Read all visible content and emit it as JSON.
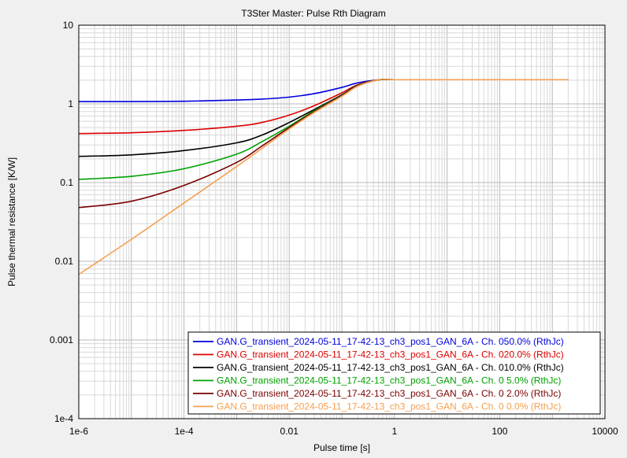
{
  "chart_data": {
    "type": "line",
    "title": "T3Ster Master: Pulse Rth Diagram",
    "xlabel": "Pulse time [s]",
    "ylabel": "Pulse thermal resistance [K/W]",
    "xscale": "log",
    "yscale": "log",
    "xlim": [
      1e-06,
      10000
    ],
    "ylim": [
      0.0001,
      10
    ],
    "x_tick_labels": [
      "1e-6",
      "1e-4",
      "0.01",
      "1",
      "100",
      "10000"
    ],
    "x_tick_values": [
      1e-06,
      0.0001,
      0.01,
      1,
      100,
      10000
    ],
    "y_tick_labels": [
      "1e-4",
      "0.001",
      "0.01",
      "0.1",
      "1",
      "10"
    ],
    "y_tick_values": [
      0.0001,
      0.001,
      0.01,
      0.1,
      1,
      10
    ],
    "grid": true,
    "legend_position": "bottom-right",
    "series": [
      {
        "name": "GAN.G_transient_2024-05-11_17-42-13_ch3_pos1_GAN_6A - Ch. 050.0% (RthJc)",
        "color": "#0000dd",
        "x": [
          1e-06,
          1e-05,
          0.0001,
          0.001,
          0.003,
          0.01,
          0.03,
          0.1,
          0.2,
          0.5,
          1,
          10,
          100,
          1000,
          2000
        ],
        "y": [
          1.07,
          1.07,
          1.08,
          1.12,
          1.15,
          1.22,
          1.35,
          1.62,
          1.85,
          2.02,
          2.03,
          2.03,
          2.03,
          2.03,
          2.03
        ]
      },
      {
        "name": "GAN.G_transient_2024-05-11_17-42-13_ch3_pos1_GAN_6A - Ch. 020.0% (RthJc)",
        "color": "#dd0000",
        "x": [
          1e-06,
          1e-05,
          0.0001,
          0.001,
          0.003,
          0.01,
          0.03,
          0.1,
          0.2,
          0.5,
          1,
          10,
          100,
          1000,
          2000
        ],
        "y": [
          0.42,
          0.43,
          0.46,
          0.52,
          0.58,
          0.72,
          0.95,
          1.38,
          1.75,
          2.02,
          2.03,
          2.03,
          2.03,
          2.03,
          2.03
        ]
      },
      {
        "name": "GAN.G_transient_2024-05-11_17-42-13_ch3_pos1_GAN_6A - Ch. 010.0% (RthJc)",
        "color": "#000000",
        "x": [
          1e-06,
          1e-05,
          0.0001,
          0.001,
          0.003,
          0.01,
          0.03,
          0.1,
          0.2,
          0.5,
          1,
          10,
          100,
          1000,
          2000
        ],
        "y": [
          0.215,
          0.225,
          0.255,
          0.32,
          0.4,
          0.58,
          0.85,
          1.3,
          1.72,
          2.02,
          2.03,
          2.03,
          2.03,
          2.03,
          2.03
        ]
      },
      {
        "name": "GAN.G_transient_2024-05-11_17-42-13_ch3_pos1_GAN_6A - Ch. 0 5.0% (RthJc)",
        "color": "#00a000",
        "x": [
          1e-06,
          1e-05,
          0.0001,
          0.001,
          0.003,
          0.01,
          0.03,
          0.1,
          0.2,
          0.5,
          1,
          10,
          100,
          1000,
          2000
        ],
        "y": [
          0.11,
          0.12,
          0.15,
          0.23,
          0.33,
          0.52,
          0.82,
          1.28,
          1.7,
          2.02,
          2.03,
          2.03,
          2.03,
          2.03,
          2.03
        ]
      },
      {
        "name": "GAN.G_transient_2024-05-11_17-42-13_ch3_pos1_GAN_6A - Ch. 0 2.0% (RthJc)",
        "color": "#7a0000",
        "x": [
          1e-06,
          1e-05,
          0.0001,
          0.001,
          0.003,
          0.01,
          0.03,
          0.1,
          0.2,
          0.5,
          1,
          10,
          100,
          1000,
          2000
        ],
        "y": [
          0.048,
          0.058,
          0.092,
          0.18,
          0.29,
          0.5,
          0.8,
          1.27,
          1.69,
          2.02,
          2.03,
          2.03,
          2.03,
          2.03,
          2.03
        ]
      },
      {
        "name": "GAN.G_transient_2024-05-11_17-42-13_ch3_pos1_GAN_6A - Ch. 0 0.0% (RthJc)",
        "color": "#f5a050",
        "x": [
          1e-06,
          1e-05,
          0.0001,
          0.001,
          0.003,
          0.01,
          0.03,
          0.1,
          0.2,
          0.5,
          1,
          10,
          100,
          1000,
          2000
        ],
        "y": [
          0.0068,
          0.019,
          0.055,
          0.16,
          0.27,
          0.48,
          0.78,
          1.25,
          1.68,
          2.02,
          2.03,
          2.03,
          2.03,
          2.03,
          2.03
        ]
      }
    ]
  }
}
